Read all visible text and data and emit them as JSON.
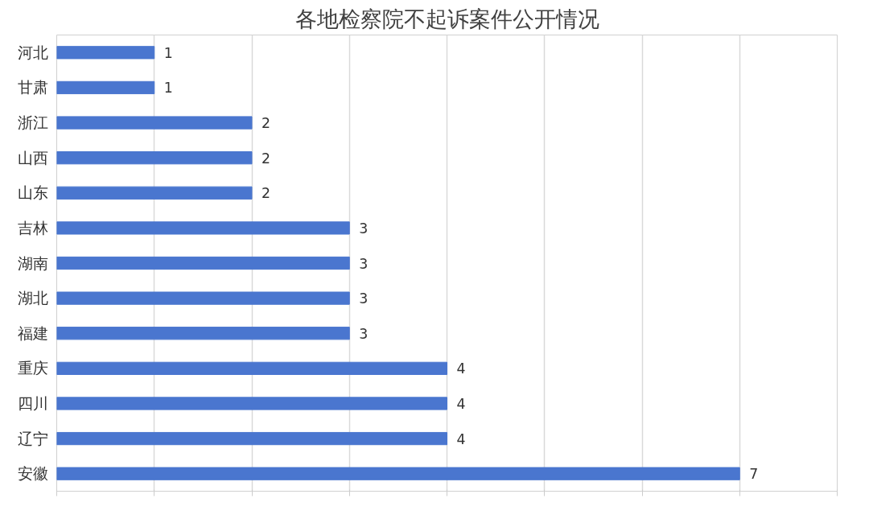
{
  "chart_data": {
    "type": "bar",
    "orientation": "horizontal",
    "title": "各地检察院不起诉案件公开情况",
    "categories": [
      "河北",
      "甘肃",
      "浙江",
      "山西",
      "山东",
      "吉林",
      "湖南",
      "湖北",
      "福建",
      "重庆",
      "四川",
      "辽宁",
      "安徽"
    ],
    "values": [
      1,
      1,
      2,
      2,
      2,
      3,
      3,
      3,
      3,
      4,
      4,
      4,
      7
    ],
    "color": "#4a76cf",
    "xlim": [
      0,
      8
    ],
    "xticks": [
      {
        "value": 0,
        "label": null
      },
      {
        "value": 1,
        "label": null
      },
      {
        "value": 2,
        "label": null
      },
      {
        "value": 3,
        "label": null
      },
      {
        "value": 4,
        "label": null
      },
      {
        "value": 5,
        "label": null
      },
      {
        "value": 6,
        "label": null
      },
      {
        "value": 7,
        "label": null
      },
      {
        "value": 8,
        "label": null
      }
    ],
    "tick_labels": "y",
    "grid": "x",
    "data_labels": true
  }
}
